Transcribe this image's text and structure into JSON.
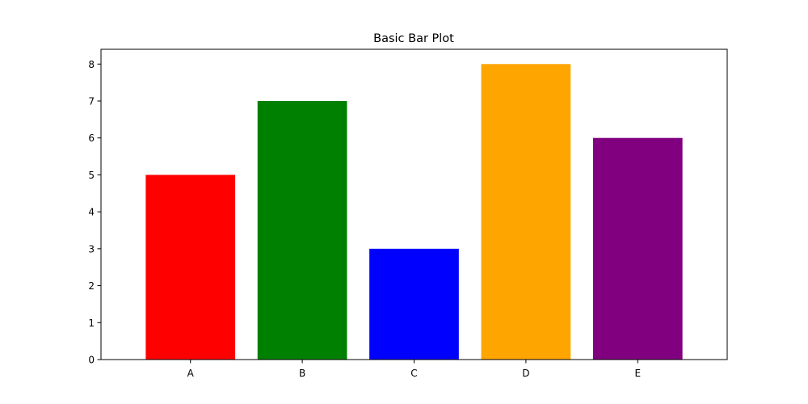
{
  "chart_data": {
    "type": "bar",
    "title": "Basic Bar Plot",
    "xlabel": "",
    "ylabel": "",
    "categories": [
      "A",
      "B",
      "C",
      "D",
      "E"
    ],
    "values": [
      5,
      7,
      3,
      8,
      6
    ],
    "colors": [
      "#ff0000",
      "#008000",
      "#0000ff",
      "#ffa500",
      "#800080"
    ],
    "ylim": [
      0,
      8.4
    ],
    "yticks": [
      0,
      1,
      2,
      3,
      4,
      5,
      6,
      7,
      8
    ],
    "grid": false,
    "legend": "none"
  }
}
